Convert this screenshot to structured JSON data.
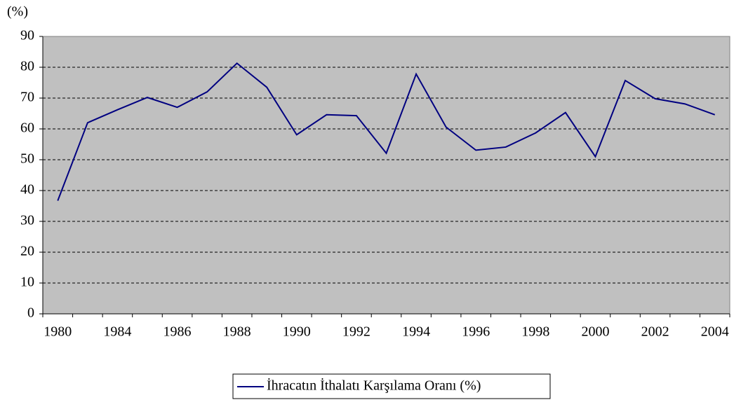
{
  "chart_data": {
    "type": "line",
    "y_label": "(%)",
    "categories": [
      "1980",
      null,
      "1984",
      null,
      "1986",
      null,
      "1988",
      null,
      "1990",
      null,
      "1992",
      null,
      "1994",
      null,
      "1996",
      null,
      "1998",
      null,
      "2000",
      null,
      "2002",
      null,
      "2004"
    ],
    "series": [
      {
        "name": "İhracatın İthalatı Karşılama Oranı (%)",
        "color": "#000080",
        "values": [
          36.7,
          62,
          66.2,
          70.2,
          67,
          72,
          81.3,
          73.5,
          58.1,
          64.6,
          64.3,
          52.1,
          77.8,
          60.6,
          53.1,
          54.1,
          58.7,
          65.3,
          51,
          75.7,
          69.8,
          68.1,
          64.6
        ]
      }
    ],
    "ylim": [
      0,
      90
    ],
    "yticks": [
      0,
      10,
      20,
      30,
      40,
      50,
      60,
      70,
      80,
      90
    ],
    "grid": true,
    "legend": "bottom",
    "background": "#c0c0c0"
  }
}
